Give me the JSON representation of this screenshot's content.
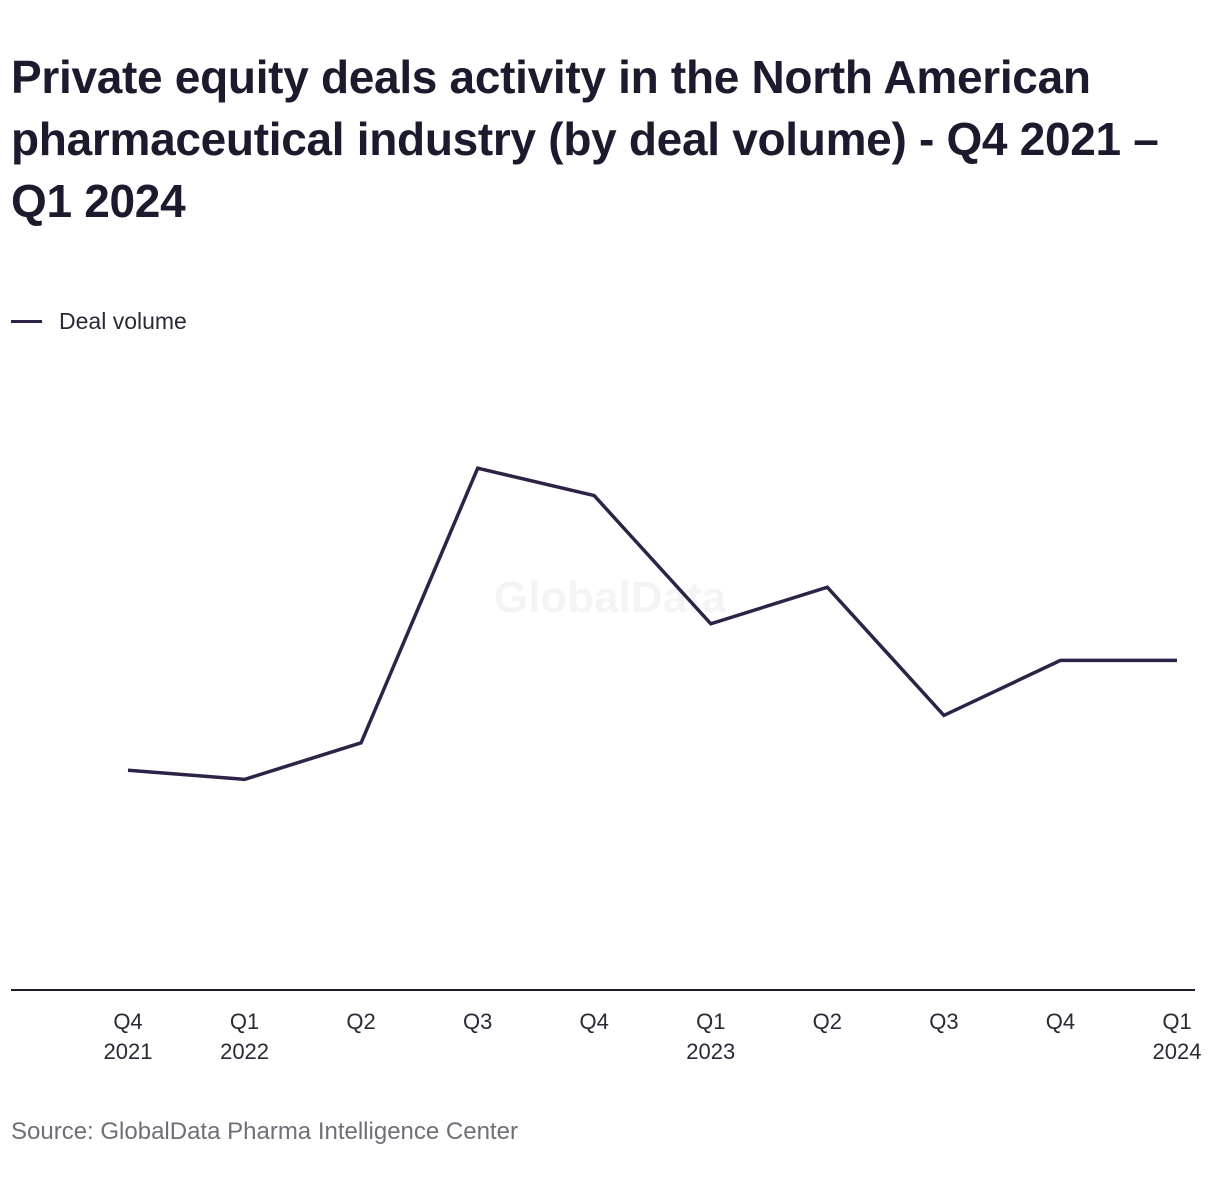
{
  "chart_data": {
    "type": "line",
    "title": "Private equity deals activity in the North American pharmaceutical industry (by deal volume) - Q4 2021 – Q1 2024",
    "xlabel": "",
    "ylabel": "",
    "categories": [
      [
        "Q4",
        "2021"
      ],
      [
        "Q1",
        "2022"
      ],
      [
        "Q2"
      ],
      [
        "Q3"
      ],
      [
        "Q4"
      ],
      [
        "Q1",
        "2023"
      ],
      [
        "Q2"
      ],
      [
        "Q3"
      ],
      [
        "Q4"
      ],
      [
        "Q1",
        "2024"
      ]
    ],
    "series": [
      {
        "name": "Deal volume",
        "color": "#2e2347",
        "values": [
          24,
          23,
          27,
          57,
          54,
          40,
          44,
          30,
          36,
          36
        ]
      }
    ],
    "ylim": [
      0,
      71
    ],
    "grid": false,
    "legend_position": "top-left",
    "watermark": "GlobalData",
    "source": "Source: GlobalData Pharma Intelligence Center"
  }
}
